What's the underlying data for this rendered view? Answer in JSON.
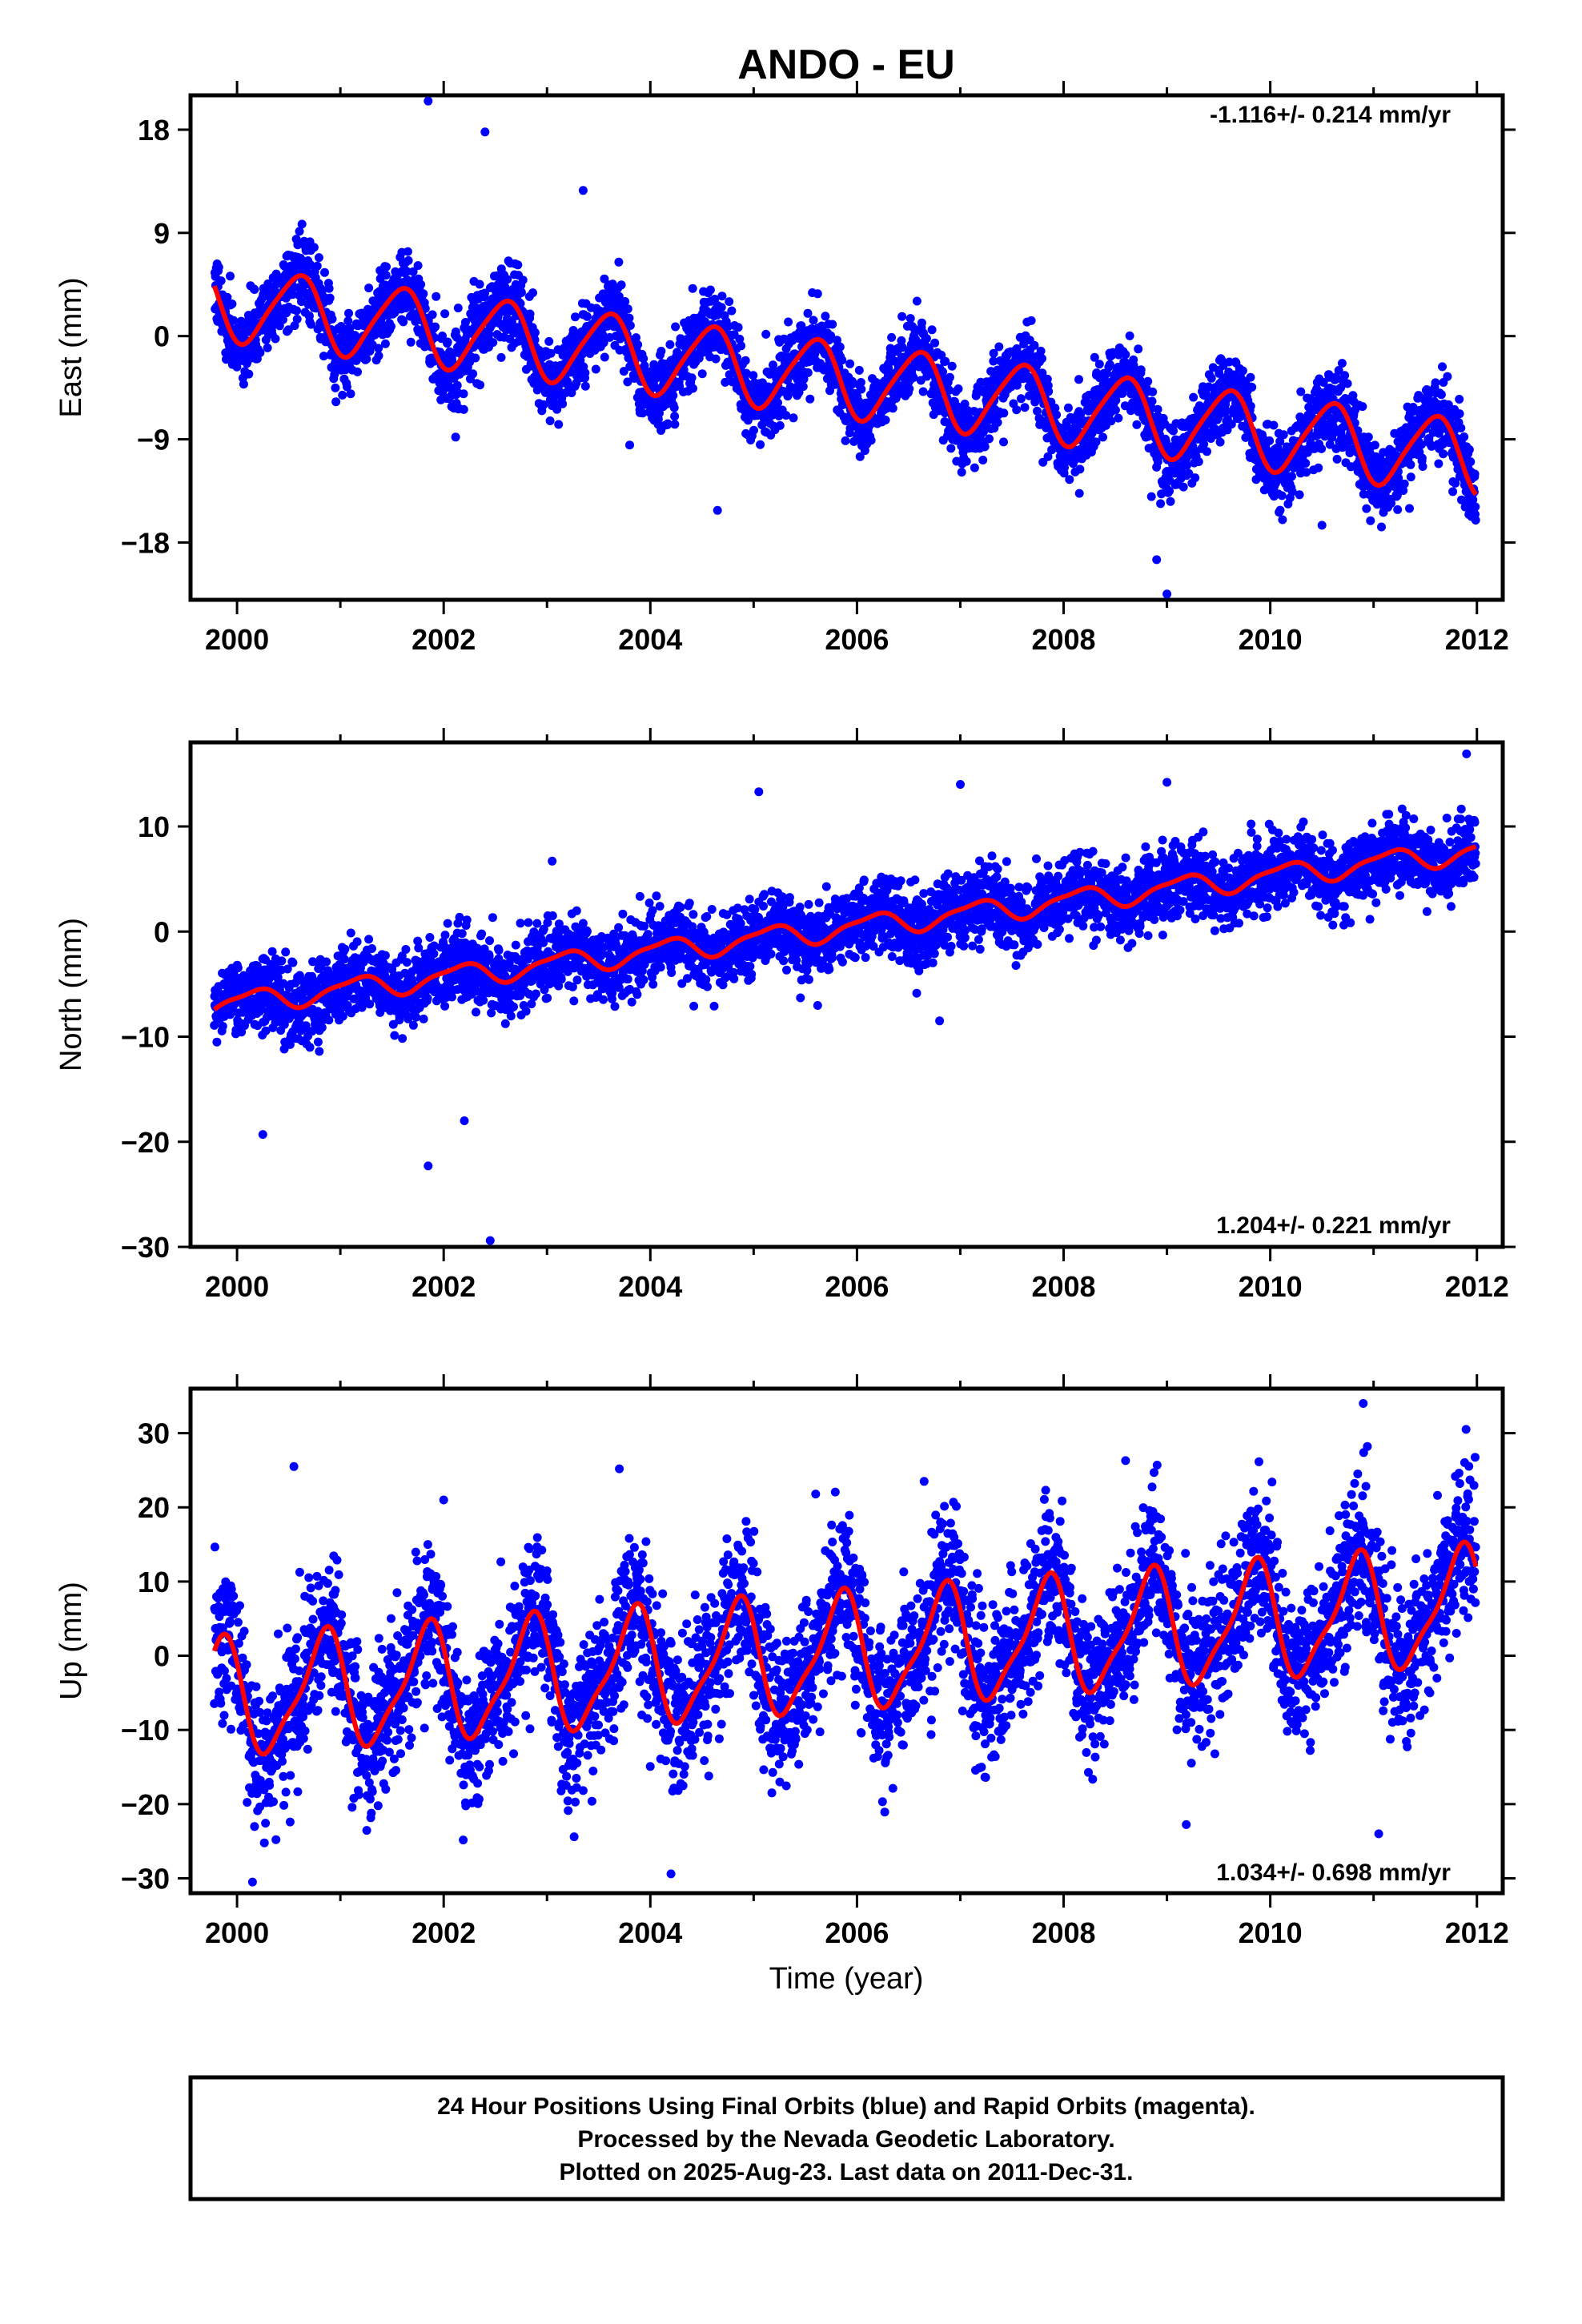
{
  "title": "ANDO - EU",
  "xlabel": "Time (year)",
  "footer": {
    "line1": "24 Hour Positions Using Final Orbits (blue) and Rapid Orbits (magenta).",
    "line2": "Processed by the Nevada Geodetic Laboratory.",
    "line3": "Plotted on 2025-Aug-23. Last data on 2011-Dec-31."
  },
  "colors": {
    "points": "#0000ff",
    "model": "#ff0000",
    "axes": "#000000"
  },
  "chart_data": [
    {
      "type": "scatter",
      "component": "East",
      "ylabel": "East (mm)",
      "rate": "-1.116+/- 0.214 mm/yr",
      "rate_position": "top-right",
      "xlim": [
        1999.55,
        2012.25
      ],
      "ylim": [
        -23,
        21
      ],
      "xticks": [
        2000,
        2002,
        2004,
        2006,
        2008,
        2010,
        2012
      ],
      "yticks": [
        -18,
        -9,
        0,
        9,
        18
      ],
      "data_range": [
        1999.78,
        2011.99
      ],
      "model": {
        "rate": -1.116,
        "offset": 3.0,
        "annual_amp": 3.2,
        "annual_phase": 0.33,
        "semiannual_amp": 0.5,
        "semiannual_phase": 0.1
      },
      "scatter_std": 1.6,
      "outliers": [
        [
          2001.85,
          20.5
        ],
        [
          2002.4,
          17.8
        ],
        [
          2003.35,
          12.7
        ],
        [
          2004.65,
          -15.2
        ],
        [
          2008.9,
          -19.5
        ],
        [
          2009.0,
          -22.5
        ],
        [
          2008.85,
          -14.0
        ],
        [
          2003.8,
          -9.5
        ],
        [
          2007.8,
          -11.0
        ],
        [
          2010.5,
          -16.5
        ]
      ]
    },
    {
      "type": "scatter",
      "component": "North",
      "ylabel": "North (mm)",
      "rate": "1.204+/- 0.221 mm/yr",
      "rate_position": "bottom-right",
      "xlim": [
        1999.55,
        2012.25
      ],
      "ylim": [
        -30,
        18
      ],
      "xticks": [
        2000,
        2002,
        2004,
        2006,
        2008,
        2010,
        2012
      ],
      "yticks": [
        -30,
        -20,
        -10,
        0,
        10
      ],
      "data_range": [
        1999.78,
        2011.99
      ],
      "model": {
        "rate": 1.204,
        "offset": -7.0,
        "annual_amp": 1.0,
        "annual_phase": 0.9,
        "semiannual_amp": 0.3,
        "semiannual_phase": 0.2
      },
      "scatter_std": 1.7,
      "outliers": [
        [
          2000.25,
          -19.3
        ],
        [
          2001.85,
          -22.3
        ],
        [
          2002.2,
          -18.0
        ],
        [
          2002.45,
          -29.4
        ],
        [
          2005.05,
          13.3
        ],
        [
          2009.0,
          14.2
        ],
        [
          2011.9,
          16.9
        ],
        [
          2007.0,
          14.0
        ],
        [
          2003.05,
          6.7
        ],
        [
          2006.8,
          -8.5
        ]
      ]
    },
    {
      "type": "scatter",
      "component": "Up",
      "ylabel": "Up (mm)",
      "rate": "1.034+/- 0.698 mm/yr",
      "rate_position": "bottom-right",
      "xlim": [
        1999.55,
        2012.25
      ],
      "ylim": [
        -32,
        36
      ],
      "xticks": [
        2000,
        2002,
        2004,
        2006,
        2008,
        2010,
        2012
      ],
      "yticks": [
        -30,
        -20,
        -10,
        0,
        10,
        20,
        30
      ],
      "data_range": [
        1999.78,
        2011.99
      ],
      "model": {
        "rate": 1.034,
        "offset": -6.0,
        "annual_amp": 7.5,
        "annual_phase": 0.58,
        "semiannual_amp": 2.0,
        "semiannual_phase": 0.3
      },
      "scatter_std": 5.0,
      "outliers": [
        [
          2000.55,
          25.5
        ],
        [
          2003.7,
          25.2
        ],
        [
          2010.9,
          34.0
        ],
        [
          2008.6,
          26.3
        ],
        [
          2000.15,
          -30.5
        ],
        [
          2004.2,
          -29.4
        ],
        [
          2011.05,
          -24.0
        ],
        [
          2006.65,
          23.5
        ],
        [
          2002.0,
          21.0
        ],
        [
          2005.6,
          21.8
        ]
      ]
    }
  ]
}
